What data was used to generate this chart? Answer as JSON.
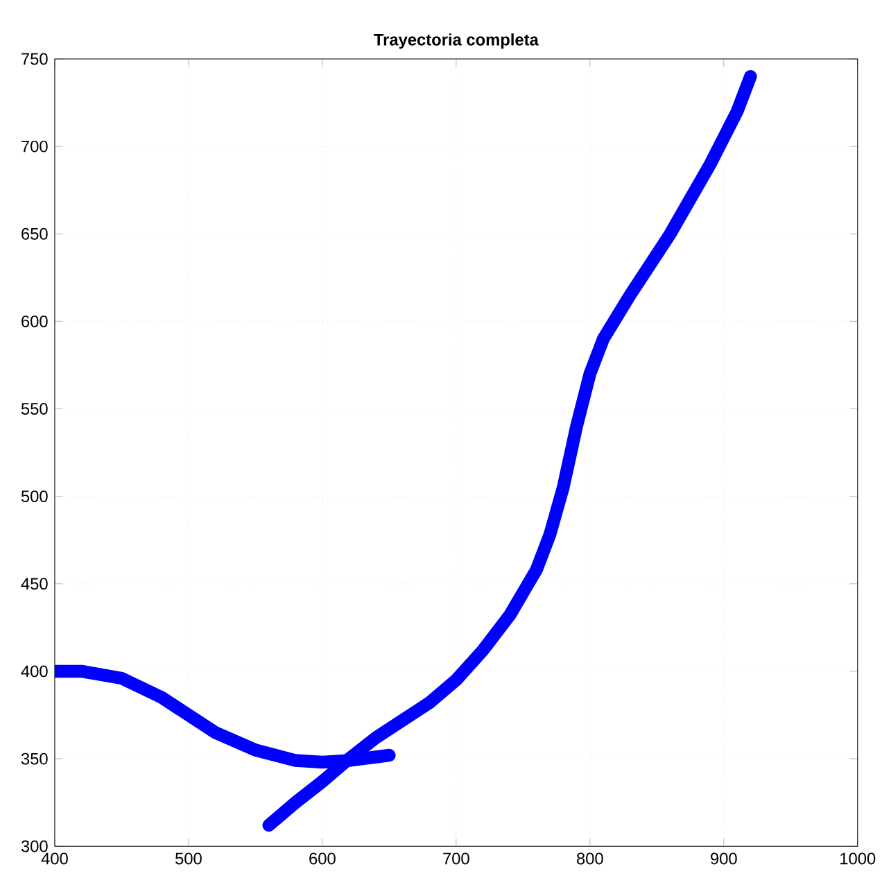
{
  "chart_data": {
    "type": "line",
    "title": "Trayectoria completa",
    "xlim": [
      400,
      1000
    ],
    "ylim": [
      300,
      750
    ],
    "xticks": [
      400,
      500,
      600,
      700,
      800,
      900,
      1000
    ],
    "yticks": [
      300,
      350,
      400,
      450,
      500,
      550,
      600,
      650,
      700,
      750
    ],
    "grid": true,
    "marker": "none",
    "line_style": "solid",
    "series": [
      {
        "color": "#0000ff",
        "x": [
          400,
          420,
          450,
          480,
          500,
          520,
          550,
          580,
          600,
          620,
          640,
          650
        ],
        "values": [
          400,
          400,
          396,
          385,
          375,
          365,
          355,
          349,
          348,
          349,
          351,
          352
        ]
      },
      {
        "color": "#0000ff",
        "x": [
          560,
          580,
          600,
          620,
          640,
          660,
          680,
          700,
          720,
          740,
          760,
          770,
          780,
          790,
          800,
          810,
          830,
          860,
          890,
          910,
          920
        ],
        "values": [
          312,
          325,
          337,
          350,
          362,
          372,
          382,
          395,
          412,
          432,
          458,
          478,
          505,
          540,
          570,
          590,
          615,
          650,
          690,
          720,
          740
        ]
      }
    ]
  }
}
